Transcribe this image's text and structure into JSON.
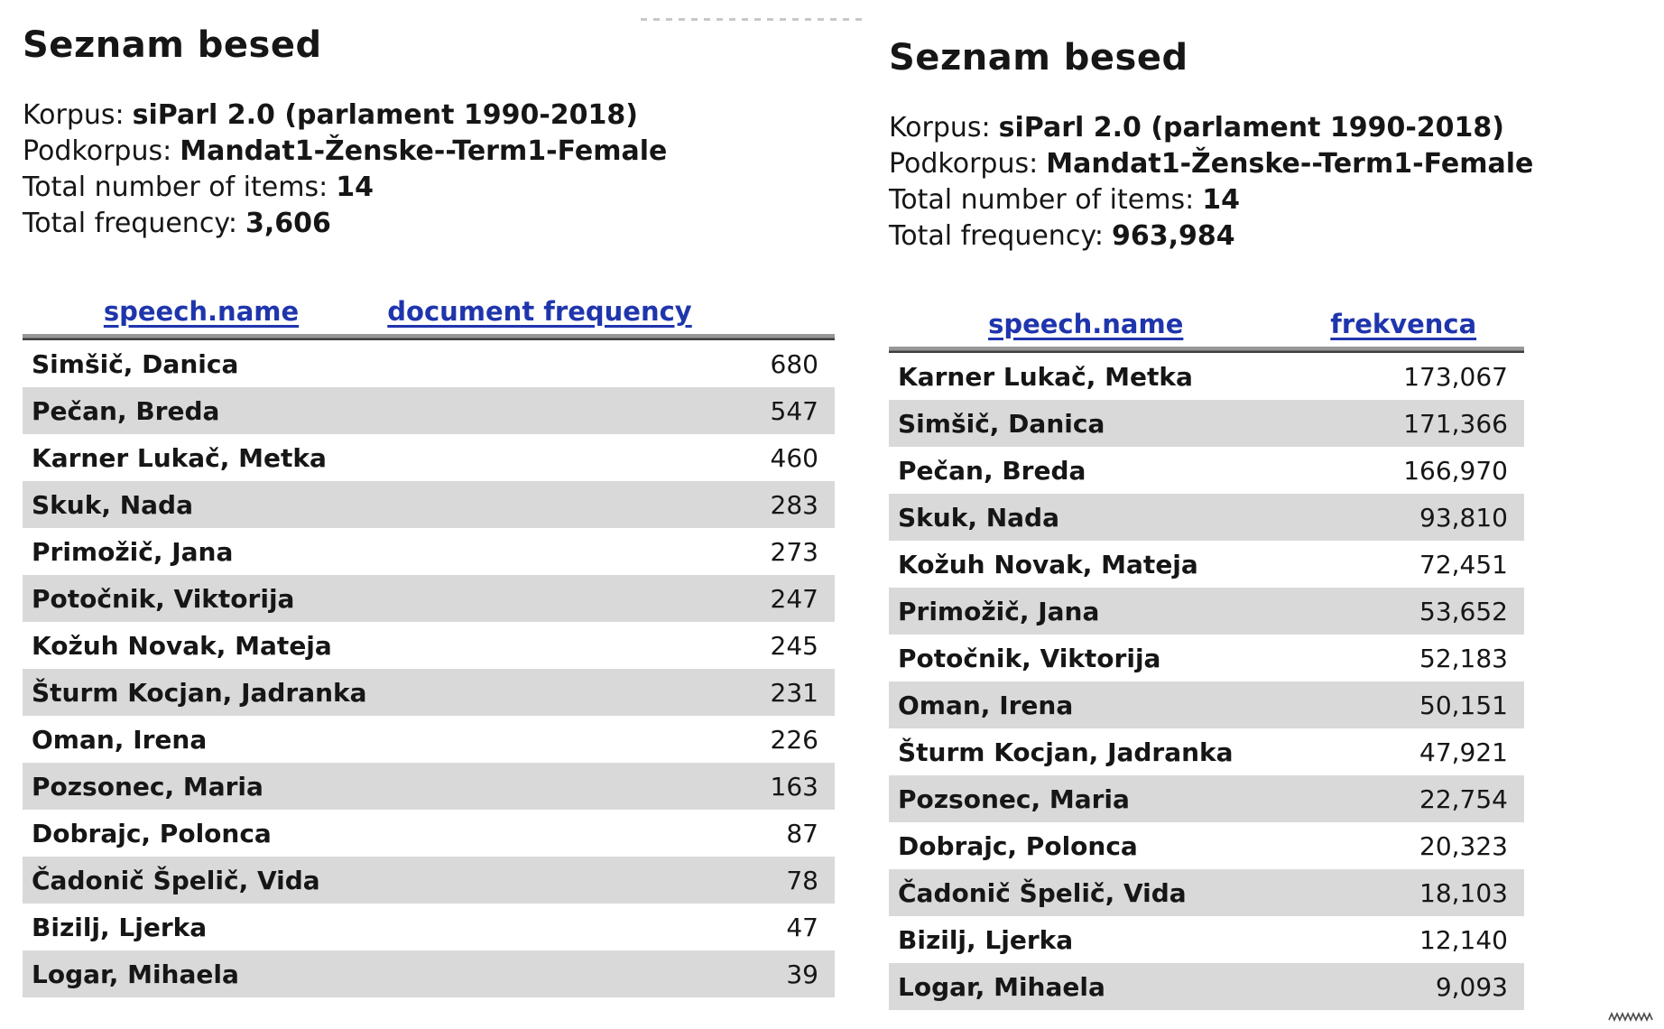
{
  "colors": {
    "link_blue": "#1f35ad",
    "stripe_gray": "#d9d9d9",
    "rule_gray": "#979797",
    "rule_dark": "#3f3f3f",
    "text": "#161616"
  },
  "panels": [
    {
      "title": "Seznam besed",
      "meta": [
        {
          "label": "Korpus:",
          "value": "siParl 2.0 (parlament 1990-2018)"
        },
        {
          "label": "Podkorpus:",
          "value": "Mandat1-Ženske--Term1-Female"
        },
        {
          "label": "Total number of items:",
          "value": "14"
        },
        {
          "label": "Total frequency:",
          "value": "3,606"
        }
      ],
      "columns": [
        "speech.name",
        "document frequency"
      ],
      "rows": [
        [
          "Simšič, Danica",
          "680"
        ],
        [
          "Pečan, Breda",
          "547"
        ],
        [
          "Karner Lukač, Metka",
          "460"
        ],
        [
          "Skuk, Nada",
          "283"
        ],
        [
          "Primožič, Jana",
          "273"
        ],
        [
          "Potočnik, Viktorija",
          "247"
        ],
        [
          "Kožuh Novak, Mateja",
          "245"
        ],
        [
          "Šturm Kocjan, Jadranka",
          "231"
        ],
        [
          "Oman, Irena",
          "226"
        ],
        [
          "Pozsonec, Maria",
          "163"
        ],
        [
          "Dobrajc, Polonca",
          "87"
        ],
        [
          "Čadonič Špelič, Vida",
          "78"
        ],
        [
          "Bizilj, Ljerka",
          "47"
        ],
        [
          "Logar, Mihaela",
          "39"
        ]
      ]
    },
    {
      "title": "Seznam besed",
      "meta": [
        {
          "label": "Korpus:",
          "value": "siParl 2.0 (parlament 1990-2018)"
        },
        {
          "label": "Podkorpus:",
          "value": "Mandat1-Ženske--Term1-Female"
        },
        {
          "label": "Total number of items:",
          "value": "14"
        },
        {
          "label": "Total frequency:",
          "value": "963,984"
        }
      ],
      "columns": [
        "speech.name",
        "frekvenca"
      ],
      "rows": [
        [
          "Karner Lukač, Metka",
          "173,067"
        ],
        [
          "Simšič, Danica",
          "171,366"
        ],
        [
          "Pečan, Breda",
          "166,970"
        ],
        [
          "Skuk, Nada",
          "93,810"
        ],
        [
          "Kožuh Novak, Mateja",
          "72,451"
        ],
        [
          "Primožič, Jana",
          "53,652"
        ],
        [
          "Potočnik, Viktorija",
          "52,183"
        ],
        [
          "Oman, Irena",
          "50,151"
        ],
        [
          "Šturm Kocjan, Jadranka",
          "47,921"
        ],
        [
          "Pozsonec, Maria",
          "22,754"
        ],
        [
          "Dobrajc, Polonca",
          "20,323"
        ],
        [
          "Čadonič Špelič, Vida",
          "18,103"
        ],
        [
          "Bizilj, Ljerka",
          "12,140"
        ],
        [
          "Logar, Mihaela",
          "9,093"
        ]
      ]
    }
  ]
}
